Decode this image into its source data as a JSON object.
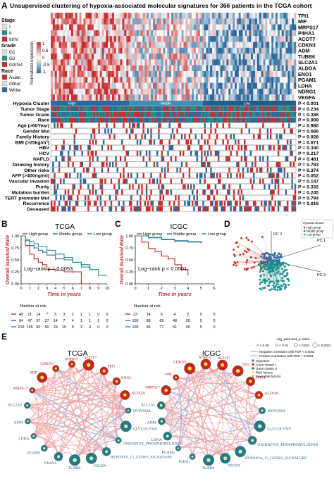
{
  "colors": {
    "red": "#c62f2f",
    "blue": "#2a6a9c",
    "teal": "#1f8f8a",
    "white": "#ffffff",
    "panel_gray": "#eeeeee",
    "circle_node_red": "#c3271e",
    "circle_node_teal": "#1f7a8c",
    "circle_edge": "#ef7f7f"
  },
  "panel_A": {
    "letter": "A",
    "title": "Unsupervised clustering of  hypoxia-associated molecular signatures for 366 patients in the TCGA cohort",
    "legend": {
      "stage": {
        "title": "Stage",
        "items": [
          "I",
          "II",
          "III/IV"
        ],
        "colors": [
          "#d9d9d9",
          "#1f8f8a",
          "#c62f2f"
        ]
      },
      "grade": {
        "title": "Grade",
        "items": [
          "G1",
          "G2",
          "G3/G4"
        ],
        "colors": [
          "#d9d9d9",
          "#1f8f8a",
          "#c62f2f"
        ]
      },
      "race": {
        "title": "Race",
        "items": [
          "Asian",
          "Other",
          "White"
        ],
        "colors": [
          "#c62f2f",
          "#d9d9d9",
          "#2a6a9c"
        ]
      },
      "colorbar": {
        "title": "Normalized expression",
        "ticks": [
          "1",
          "0.5",
          "0",
          "-0.5",
          "-1"
        ]
      }
    },
    "genes": [
      "TPI1",
      "MIF",
      "MRPS17",
      "P4HA1",
      "ACOT7",
      "CDKN3",
      "ADM",
      "TUBB6",
      "SLC2A1",
      "ALDOA",
      "ENO1",
      "PGAM1",
      "LDHA",
      "NDRG1",
      "VEGFA"
    ],
    "cluster_labels": [
      "High",
      "Middle",
      "Low"
    ],
    "annotation_rows": [
      {
        "label": "Hypoxia Cluster",
        "p": "P < 0.001"
      },
      {
        "label": "Tumor Stage",
        "p": "P = 0.234"
      },
      {
        "label": "Tumor Grade",
        "p": "P = 0.386"
      },
      {
        "label": "Race",
        "p": "P = 0.909"
      },
      {
        "label": "Age (>60Year)",
        "p": "P = 0.980"
      },
      {
        "label": "Gender Mul",
        "p": "P = 0.686"
      },
      {
        "label": "Family History",
        "p": "P = 0.928"
      },
      {
        "label": "BMI (>25kg/m²)",
        "p": "P = 0.671"
      },
      {
        "label": "HBV",
        "p": "P = 0.340"
      },
      {
        "label": "HCV",
        "p": "P = 0.217"
      },
      {
        "label": "NAFLD",
        "p": "P = 0.481"
      },
      {
        "label": "Drinking history",
        "p": "P = 0.783"
      },
      {
        "label": "Other risks",
        "p": "P = 0.374"
      },
      {
        "label": "AFP (>400ng/ml)",
        "p": "P = 0.052"
      },
      {
        "label": "Vascular invasion",
        "p": "P = 0.147"
      },
      {
        "label": "Purity",
        "p": "P = 0.332"
      },
      {
        "label": "Mutation burden",
        "p": "P = 0.245"
      },
      {
        "label": "TERT promoter Mut",
        "p": "P = 0.794"
      },
      {
        "label": "Recurrence",
        "p": "P = 0.016"
      },
      {
        "label": "Deceased",
        "p": ""
      }
    ]
  },
  "panel_B": {
    "letter": "B",
    "title": "TCGA",
    "ylabel": "Overall Survival Rate",
    "xlabel": "Time in years",
    "legend": [
      "High group",
      "Middle group",
      "Low group"
    ],
    "annotation": "Log−rank p = 0.0053",
    "yticks": [
      "0.00",
      "0.25",
      "0.50",
      "0.75",
      "1.00"
    ],
    "xticks": [
      "0",
      "1",
      "2",
      "3",
      "4",
      "5",
      "6",
      "7",
      "8",
      "9",
      "10"
    ],
    "risk_title": "Number at risk",
    "risk_rows": [
      [
        "40",
        "21",
        "14",
        "7",
        "5",
        "3",
        "2",
        "1",
        "1",
        "0",
        "0"
      ],
      [
        "84",
        "47",
        "37",
        "27",
        "14",
        "7",
        "4",
        "1",
        "1",
        "1",
        "0"
      ],
      [
        "219",
        "165",
        "90",
        "50",
        "29",
        "15",
        "9",
        "3",
        "3",
        "0",
        "0"
      ]
    ]
  },
  "panel_C": {
    "letter": "C",
    "title": "ICGC",
    "ylabel": "Overall Survival Rate",
    "xlabel": "Time in years",
    "legend": [
      "High group",
      "Middle group",
      "Low group"
    ],
    "annotation": "Log−rank p < 0.0001",
    "yticks": [
      "0.00",
      "0.25",
      "0.50",
      "0.75",
      "1.00"
    ],
    "xticks": [
      "0",
      "1",
      "2",
      "3",
      "4",
      "5",
      "6"
    ],
    "risk_title": "Number at risk",
    "risk_rows": [
      [
        "23",
        "14",
        "6",
        "4",
        "2",
        "0",
        "0"
      ],
      [
        "100",
        "88",
        "65",
        "48",
        "26",
        "5",
        "0"
      ],
      [
        "109",
        "96",
        "77",
        "61",
        "30",
        "5",
        "0"
      ]
    ]
  },
  "panel_D": {
    "letter": "D",
    "axes": [
      "PC 1",
      "PC 2",
      "PC 3"
    ],
    "legend_title": "Hypoxia cluster",
    "legend": [
      "High group",
      "Middle group",
      "Low group"
    ]
  },
  "panel_E": {
    "letter": "E",
    "networks": [
      {
        "title": "TCGA",
        "nodes": [
          "TPI1",
          "ENO1",
          "ALDOA",
          "HYPOXIA",
          "GLYCOLYSIS",
          "OXIDATIVE_PHOSPHORYLATION",
          "HYPOXIA_15_GENES_SIGNATURE",
          "VEGFA",
          "TUBB6",
          "P4HA1",
          "PGAM1",
          "LDHA",
          "ADM",
          "SLC2A1",
          "MRPS17",
          "MIF",
          "CDKN3",
          "NDRG1",
          "ACOT7"
        ]
      },
      {
        "title": "ICGC",
        "nodes": [
          "TPI1",
          "ENO1",
          "ALDOA",
          "HYPOXIA",
          "GLYCOLYSIS",
          "OXIDATIVE_PHOSPHORYLATION",
          "HYPOXIA_15_GENES_SIGNATURE",
          "VEGFA",
          "TUBB6",
          "P4HA1",
          "PGAM1",
          "LDHA",
          "ADM",
          "SLC2A1",
          "MRPS17",
          "MIF",
          "CDKN3",
          "NDRG1",
          "ACOT7"
        ]
      }
    ],
    "legend": {
      "pvalue_title": "-log_rank test_p value",
      "pvalue_items": [
        "< 0.05",
        "< 0.01",
        "< 0.001",
        "< 0.0001"
      ],
      "edge_items": [
        "Negative correlation with FDR < 0.0001",
        "Positive correlation with FDR < 0.0001"
      ],
      "node_items": [
        "Signature",
        "Gene cluster I",
        "Gene cluster II",
        "Risk factors",
        "Favorable factors"
      ]
    }
  },
  "chart_data": [
    {
      "type": "heatmap",
      "title": "Unsupervised clustering of  hypoxia-associated molecular signatures for 366 patients in the TCGA cohort",
      "rows": [
        "TPI1",
        "MIF",
        "MRPS17",
        "P4HA1",
        "ACOT7",
        "CDKN3",
        "ADM",
        "TUBB6",
        "SLC2A1",
        "ALDOA",
        "ENO1",
        "PGAM1",
        "LDHA",
        "NDRG1",
        "VEGFA"
      ],
      "clusters": [
        "High",
        "Middle",
        "Low"
      ],
      "colorbar_range": [
        -1,
        1
      ],
      "p_values": [
        "P < 0.001",
        "P = 0.234",
        "P = 0.386",
        "P = 0.909",
        "P = 0.980",
        "P = 0.686",
        "P = 0.928",
        "P = 0.671",
        "P = 0.340",
        "P = 0.217",
        "P = 0.481",
        "P = 0.783",
        "P = 0.374",
        "P = 0.052",
        "P = 0.147",
        "P = 0.332",
        "P = 0.245",
        "P = 0.794",
        "P = 0.016"
      ]
    },
    {
      "type": "line",
      "title": "TCGA",
      "xlabel": "Time in years",
      "ylabel": "Overall Survival Rate",
      "xlim": [
        0,
        10
      ],
      "ylim": [
        0,
        1
      ],
      "series": [
        {
          "name": "High group",
          "x": [
            0,
            0.5,
            1,
            1.5,
            2,
            2.5,
            3,
            4,
            5,
            6,
            7,
            8
          ],
          "values": [
            1,
            0.8,
            0.62,
            0.52,
            0.45,
            0.4,
            0.3,
            0.28,
            0.25,
            0.25,
            0.0,
            0.0
          ]
        },
        {
          "name": "Middle group",
          "x": [
            0,
            0.5,
            1,
            1.5,
            2,
            2.5,
            3,
            4,
            5,
            6,
            7,
            8,
            9
          ],
          "values": [
            1,
            0.9,
            0.8,
            0.75,
            0.7,
            0.66,
            0.6,
            0.52,
            0.5,
            0.45,
            0.4,
            0.3,
            0.3
          ]
        },
        {
          "name": "Low group",
          "x": [
            0,
            0.5,
            1,
            1.5,
            2,
            3,
            4,
            5,
            6,
            7,
            8,
            9,
            10
          ],
          "values": [
            1,
            0.93,
            0.88,
            0.84,
            0.78,
            0.7,
            0.62,
            0.55,
            0.45,
            0.35,
            0.3,
            0.18,
            0.18
          ]
        }
      ]
    },
    {
      "type": "line",
      "title": "ICGC",
      "xlabel": "Time in years",
      "ylabel": "Overall Survival Rate",
      "xlim": [
        0,
        6
      ],
      "ylim": [
        0,
        1
      ],
      "series": [
        {
          "name": "High group",
          "x": [
            0,
            0.5,
            1,
            1.5,
            2,
            2.5,
            3,
            3.5,
            4
          ],
          "values": [
            1,
            0.87,
            0.74,
            0.68,
            0.58,
            0.52,
            0.4,
            0.3,
            0.18
          ]
        },
        {
          "name": "Middle group",
          "x": [
            0,
            1,
            2,
            3,
            4,
            5
          ],
          "values": [
            1,
            0.97,
            0.93,
            0.9,
            0.88,
            0.86
          ]
        },
        {
          "name": "Low group",
          "x": [
            0,
            1,
            2,
            3,
            4,
            5
          ],
          "values": [
            1,
            0.96,
            0.92,
            0.89,
            0.87,
            0.85
          ]
        }
      ]
    },
    {
      "type": "scatter",
      "axes": [
        "PC 1",
        "PC 2",
        "PC 3"
      ],
      "series": [
        {
          "name": "High group"
        },
        {
          "name": "Middle group"
        },
        {
          "name": "Low group"
        }
      ]
    }
  ]
}
